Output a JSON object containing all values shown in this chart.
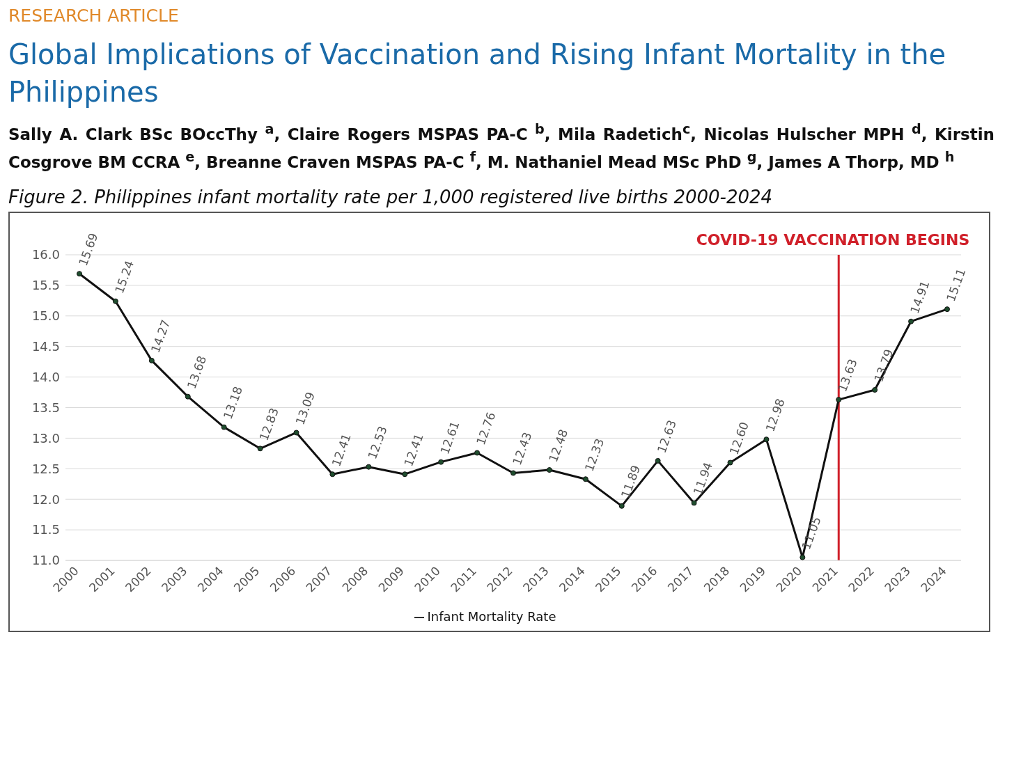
{
  "chart_data": {
    "type": "line",
    "title": "Figure 2. Philippines infant mortality rate per 1,000 registered live births 2000-2024",
    "annotations": [
      "RESEARCH ARTICLE",
      "Global Implications of Vaccination and Rising Infant Mortality in the Philippines",
      "Sally A. Clark BSc BOccThy $^{a}$, Claire Rogers MSPAS PA-C $^{b}$, Mila Radetich$^{c}$, Nicolas Hulscher MPH $^{d}$, Kirstin Cosgrove BM CCRA $^{e}$, Breanne Craven MSPAS PA-C $^{f}$, M. Nathaniel Mead MSc PhD $^{g}$, James A Thorp, MD $^{h}$"
    ],
    "categories": [
      "2000",
      "2001",
      "2002",
      "2003",
      "2004",
      "2005",
      "2006",
      "2007",
      "2008",
      "2009",
      "2010",
      "2011",
      "2012",
      "2013",
      "2014",
      "2015",
      "2016",
      "2017",
      "2018",
      "2019",
      "2020",
      "2021",
      "2022",
      "2023",
      "2024"
    ],
    "series": [
      {
        "name": "Infant Mortality Rate",
        "color": "#111111",
        "values": [
          15.69,
          15.24,
          14.27,
          13.68,
          13.18,
          12.83,
          13.09,
          12.41,
          12.53,
          12.41,
          12.61,
          12.76,
          12.43,
          12.48,
          12.33,
          11.89,
          12.63,
          11.94,
          12.6,
          12.98,
          11.05,
          13.63,
          13.79,
          14.91,
          15.11
        ],
        "value_labels": [
          "15.69",
          "15.24",
          "14.27",
          "13.68",
          "13.18",
          "12.83",
          "13.09",
          "12.41",
          "12.53",
          "12.41",
          "12.61",
          "12.76",
          "12.43",
          "12.48",
          "12.33",
          "11.89",
          "12.63",
          "11.94",
          "12.60",
          "12.98",
          "11.05",
          "13.63",
          "13.79",
          "14.91",
          "15.11"
        ]
      }
    ],
    "ylim": [
      11,
      16
    ],
    "yticks": [
      {
        "value": 11,
        "label": "11.0"
      },
      {
        "value": 11.5,
        "label": "11.5"
      },
      {
        "value": 12,
        "label": "12.0"
      },
      {
        "value": 12.5,
        "label": "12.5"
      },
      {
        "value": 13,
        "label": "13.0"
      },
      {
        "value": 13.5,
        "label": "13.5"
      },
      {
        "value": 14,
        "label": "14.0"
      },
      {
        "value": 14.5,
        "label": "14.5"
      },
      {
        "value": 15,
        "label": "15.0"
      },
      {
        "value": 15.5,
        "label": "15.5"
      },
      {
        "value": 16,
        "label": "16.0"
      }
    ],
    "ref_lines": [
      {
        "axis": "x",
        "value": "2021",
        "label": "COVID-19 VACCINATION BEGINS",
        "color": "#d0202a"
      }
    ],
    "grid": "y",
    "legend": "bottom",
    "marker": "circle",
    "line_style": "solid"
  }
}
